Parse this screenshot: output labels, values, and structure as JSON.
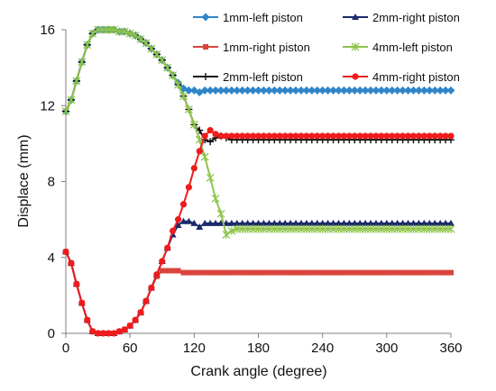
{
  "chart_data": {
    "type": "line",
    "title": "",
    "xlabel": "Crank angle (degree)",
    "ylabel": "Displace (mm)",
    "xlim": [
      0,
      360
    ],
    "ylim": [
      0,
      16
    ],
    "xticks": [
      0,
      60,
      120,
      180,
      240,
      300,
      360
    ],
    "yticks": [
      0,
      4,
      8,
      12,
      16
    ],
    "grid": false,
    "legend_position": "top-right",
    "series": [
      {
        "name": "1mm-left piston",
        "color": "#2e86c9",
        "marker": "diamond",
        "x": [
          0,
          5,
          10,
          15,
          20,
          25,
          30,
          35,
          40,
          45,
          50,
          55,
          60,
          65,
          70,
          75,
          80,
          85,
          90,
          95,
          100,
          105,
          110,
          115,
          120,
          125,
          130,
          135,
          140,
          145,
          150,
          155,
          160,
          165,
          170,
          175,
          180,
          185,
          190,
          195,
          200,
          205,
          210,
          215,
          220,
          225,
          230,
          235,
          240,
          245,
          250,
          255,
          260,
          265,
          270,
          275,
          280,
          285,
          290,
          295,
          300,
          305,
          310,
          315,
          320,
          325,
          330,
          335,
          340,
          345,
          350,
          355,
          360
        ],
        "values": [
          11.7,
          12.3,
          13.3,
          14.3,
          15.2,
          15.8,
          16.0,
          16.0,
          16.0,
          16.0,
          15.9,
          15.9,
          15.8,
          15.7,
          15.5,
          15.3,
          15.0,
          14.7,
          14.4,
          14.0,
          13.6,
          13.2,
          12.9,
          12.8,
          12.8,
          12.7,
          12.8,
          12.8,
          12.8,
          12.8,
          12.8,
          12.8,
          12.8,
          12.8,
          12.8,
          12.8,
          12.8,
          12.8,
          12.8,
          12.8,
          12.8,
          12.8,
          12.8,
          12.8,
          12.8,
          12.8,
          12.8,
          12.8,
          12.8,
          12.8,
          12.8,
          12.8,
          12.8,
          12.8,
          12.8,
          12.8,
          12.8,
          12.8,
          12.8,
          12.8,
          12.8,
          12.8,
          12.8,
          12.8,
          12.8,
          12.8,
          12.8,
          12.8,
          12.8,
          12.8,
          12.8,
          12.8,
          12.8
        ]
      },
      {
        "name": "1mm-right piston",
        "color": "#d9453d",
        "marker": "square",
        "x": [
          0,
          5,
          10,
          15,
          20,
          25,
          30,
          35,
          40,
          45,
          50,
          55,
          60,
          65,
          70,
          75,
          80,
          85,
          90,
          95,
          100,
          105,
          110,
          115,
          120,
          125,
          130,
          135,
          140,
          145,
          150,
          155,
          160,
          165,
          170,
          175,
          180,
          185,
          190,
          195,
          200,
          205,
          210,
          215,
          220,
          225,
          230,
          235,
          240,
          245,
          250,
          255,
          260,
          265,
          270,
          275,
          280,
          285,
          290,
          295,
          300,
          305,
          310,
          315,
          320,
          325,
          330,
          335,
          340,
          345,
          350,
          355,
          360
        ],
        "values": [
          4.3,
          3.7,
          2.6,
          1.6,
          0.7,
          0.1,
          0.0,
          0.0,
          0.0,
          0.0,
          0.1,
          0.2,
          0.4,
          0.7,
          1.1,
          1.7,
          2.4,
          3.0,
          3.3,
          3.3,
          3.3,
          3.3,
          3.2,
          3.2,
          3.2,
          3.2,
          3.2,
          3.2,
          3.2,
          3.2,
          3.2,
          3.2,
          3.2,
          3.2,
          3.2,
          3.2,
          3.2,
          3.2,
          3.2,
          3.2,
          3.2,
          3.2,
          3.2,
          3.2,
          3.2,
          3.2,
          3.2,
          3.2,
          3.2,
          3.2,
          3.2,
          3.2,
          3.2,
          3.2,
          3.2,
          3.2,
          3.2,
          3.2,
          3.2,
          3.2,
          3.2,
          3.2,
          3.2,
          3.2,
          3.2,
          3.2,
          3.2,
          3.2,
          3.2,
          3.2,
          3.2,
          3.2,
          3.2
        ]
      },
      {
        "name": "2mm-left piston",
        "color": "#111111",
        "marker": "plus",
        "x": [
          0,
          5,
          10,
          15,
          20,
          25,
          30,
          35,
          40,
          45,
          50,
          55,
          60,
          65,
          70,
          75,
          80,
          85,
          90,
          95,
          100,
          105,
          110,
          115,
          120,
          125,
          130,
          135,
          140,
          145,
          150,
          155,
          160,
          165,
          170,
          175,
          180,
          185,
          190,
          195,
          200,
          205,
          210,
          215,
          220,
          225,
          230,
          235,
          240,
          245,
          250,
          255,
          260,
          265,
          270,
          275,
          280,
          285,
          290,
          295,
          300,
          305,
          310,
          315,
          320,
          325,
          330,
          335,
          340,
          345,
          350,
          355,
          360
        ],
        "values": [
          11.7,
          12.3,
          13.3,
          14.3,
          15.2,
          15.8,
          16.0,
          16.0,
          16.0,
          16.0,
          15.9,
          15.9,
          15.8,
          15.7,
          15.5,
          15.3,
          15.0,
          14.7,
          14.4,
          14.0,
          13.6,
          13.1,
          12.5,
          11.8,
          11.0,
          10.7,
          10.2,
          10.1,
          10.3,
          10.4,
          10.3,
          10.2,
          10.2,
          10.2,
          10.2,
          10.2,
          10.2,
          10.2,
          10.2,
          10.2,
          10.2,
          10.2,
          10.2,
          10.2,
          10.2,
          10.2,
          10.2,
          10.2,
          10.2,
          10.2,
          10.2,
          10.2,
          10.2,
          10.2,
          10.2,
          10.2,
          10.2,
          10.2,
          10.2,
          10.2,
          10.2,
          10.2,
          10.2,
          10.2,
          10.2,
          10.2,
          10.2,
          10.2,
          10.2,
          10.2,
          10.2,
          10.2,
          10.2
        ]
      },
      {
        "name": "2mm-right piston",
        "color": "#1a2a6b",
        "marker": "triangle",
        "x": [
          0,
          5,
          10,
          15,
          20,
          25,
          30,
          35,
          40,
          45,
          50,
          55,
          60,
          65,
          70,
          75,
          80,
          85,
          90,
          95,
          100,
          105,
          110,
          115,
          120,
          125,
          130,
          135,
          140,
          145,
          150,
          155,
          160,
          165,
          170,
          175,
          180,
          185,
          190,
          195,
          200,
          205,
          210,
          215,
          220,
          225,
          230,
          235,
          240,
          245,
          250,
          255,
          260,
          265,
          270,
          275,
          280,
          285,
          290,
          295,
          300,
          305,
          310,
          315,
          320,
          325,
          330,
          335,
          340,
          345,
          350,
          355,
          360
        ],
        "values": [
          4.3,
          3.7,
          2.6,
          1.6,
          0.7,
          0.1,
          0.0,
          0.0,
          0.0,
          0.0,
          0.1,
          0.2,
          0.4,
          0.7,
          1.1,
          1.7,
          2.4,
          3.1,
          3.8,
          4.5,
          5.2,
          5.7,
          5.9,
          5.9,
          5.8,
          5.6,
          5.8,
          5.8,
          5.8,
          5.8,
          5.8,
          5.8,
          5.8,
          5.8,
          5.8,
          5.8,
          5.8,
          5.8,
          5.8,
          5.8,
          5.8,
          5.8,
          5.8,
          5.8,
          5.8,
          5.8,
          5.8,
          5.8,
          5.8,
          5.8,
          5.8,
          5.8,
          5.8,
          5.8,
          5.8,
          5.8,
          5.8,
          5.8,
          5.8,
          5.8,
          5.8,
          5.8,
          5.8,
          5.8,
          5.8,
          5.8,
          5.8,
          5.8,
          5.8,
          5.8,
          5.8,
          5.8,
          5.8
        ]
      },
      {
        "name": "4mm-left piston",
        "color": "#8ec44b",
        "marker": "star",
        "x": [
          0,
          5,
          10,
          15,
          20,
          25,
          30,
          35,
          40,
          45,
          50,
          55,
          60,
          65,
          70,
          75,
          80,
          85,
          90,
          95,
          100,
          105,
          110,
          115,
          120,
          125,
          130,
          135,
          140,
          145,
          150,
          155,
          160,
          165,
          170,
          175,
          180,
          185,
          190,
          195,
          200,
          205,
          210,
          215,
          220,
          225,
          230,
          235,
          240,
          245,
          250,
          255,
          260,
          265,
          270,
          275,
          280,
          285,
          290,
          295,
          300,
          305,
          310,
          315,
          320,
          325,
          330,
          335,
          340,
          345,
          350,
          355,
          360
        ],
        "values": [
          11.7,
          12.3,
          13.3,
          14.3,
          15.2,
          15.8,
          16.0,
          16.0,
          16.0,
          16.0,
          15.9,
          15.9,
          15.8,
          15.7,
          15.5,
          15.3,
          15.0,
          14.7,
          14.4,
          14.0,
          13.6,
          13.1,
          12.5,
          11.8,
          11.0,
          10.2,
          9.3,
          8.2,
          7.1,
          6.3,
          5.2,
          5.4,
          5.5,
          5.5,
          5.5,
          5.5,
          5.5,
          5.5,
          5.5,
          5.5,
          5.5,
          5.5,
          5.5,
          5.5,
          5.5,
          5.5,
          5.5,
          5.5,
          5.5,
          5.5,
          5.5,
          5.5,
          5.5,
          5.5,
          5.5,
          5.5,
          5.5,
          5.5,
          5.5,
          5.5,
          5.5,
          5.5,
          5.5,
          5.5,
          5.5,
          5.5,
          5.5,
          5.5,
          5.5,
          5.5,
          5.5,
          5.5,
          5.5
        ]
      },
      {
        "name": "4mm-right piston",
        "color": "#ee1c1c",
        "marker": "circle",
        "x": [
          0,
          5,
          10,
          15,
          20,
          25,
          30,
          35,
          40,
          45,
          50,
          55,
          60,
          65,
          70,
          75,
          80,
          85,
          90,
          95,
          100,
          105,
          110,
          115,
          120,
          125,
          130,
          135,
          140,
          145,
          150,
          155,
          160,
          165,
          170,
          175,
          180,
          185,
          190,
          195,
          200,
          205,
          210,
          215,
          220,
          225,
          230,
          235,
          240,
          245,
          250,
          255,
          260,
          265,
          270,
          275,
          280,
          285,
          290,
          295,
          300,
          305,
          310,
          315,
          320,
          325,
          330,
          335,
          340,
          345,
          350,
          355,
          360
        ],
        "values": [
          4.3,
          3.7,
          2.6,
          1.6,
          0.7,
          0.1,
          0.0,
          0.0,
          0.0,
          0.0,
          0.1,
          0.2,
          0.4,
          0.7,
          1.1,
          1.7,
          2.4,
          3.1,
          3.8,
          4.5,
          5.4,
          6.0,
          6.8,
          7.7,
          8.7,
          9.6,
          10.4,
          10.7,
          10.5,
          10.4,
          10.4,
          10.4,
          10.4,
          10.4,
          10.4,
          10.4,
          10.4,
          10.4,
          10.4,
          10.4,
          10.4,
          10.4,
          10.4,
          10.4,
          10.4,
          10.4,
          10.4,
          10.4,
          10.4,
          10.4,
          10.4,
          10.4,
          10.4,
          10.4,
          10.4,
          10.4,
          10.4,
          10.4,
          10.4,
          10.4,
          10.4,
          10.4,
          10.4,
          10.4,
          10.4,
          10.4,
          10.4,
          10.4,
          10.4,
          10.4,
          10.4,
          10.4,
          10.4
        ]
      }
    ]
  }
}
